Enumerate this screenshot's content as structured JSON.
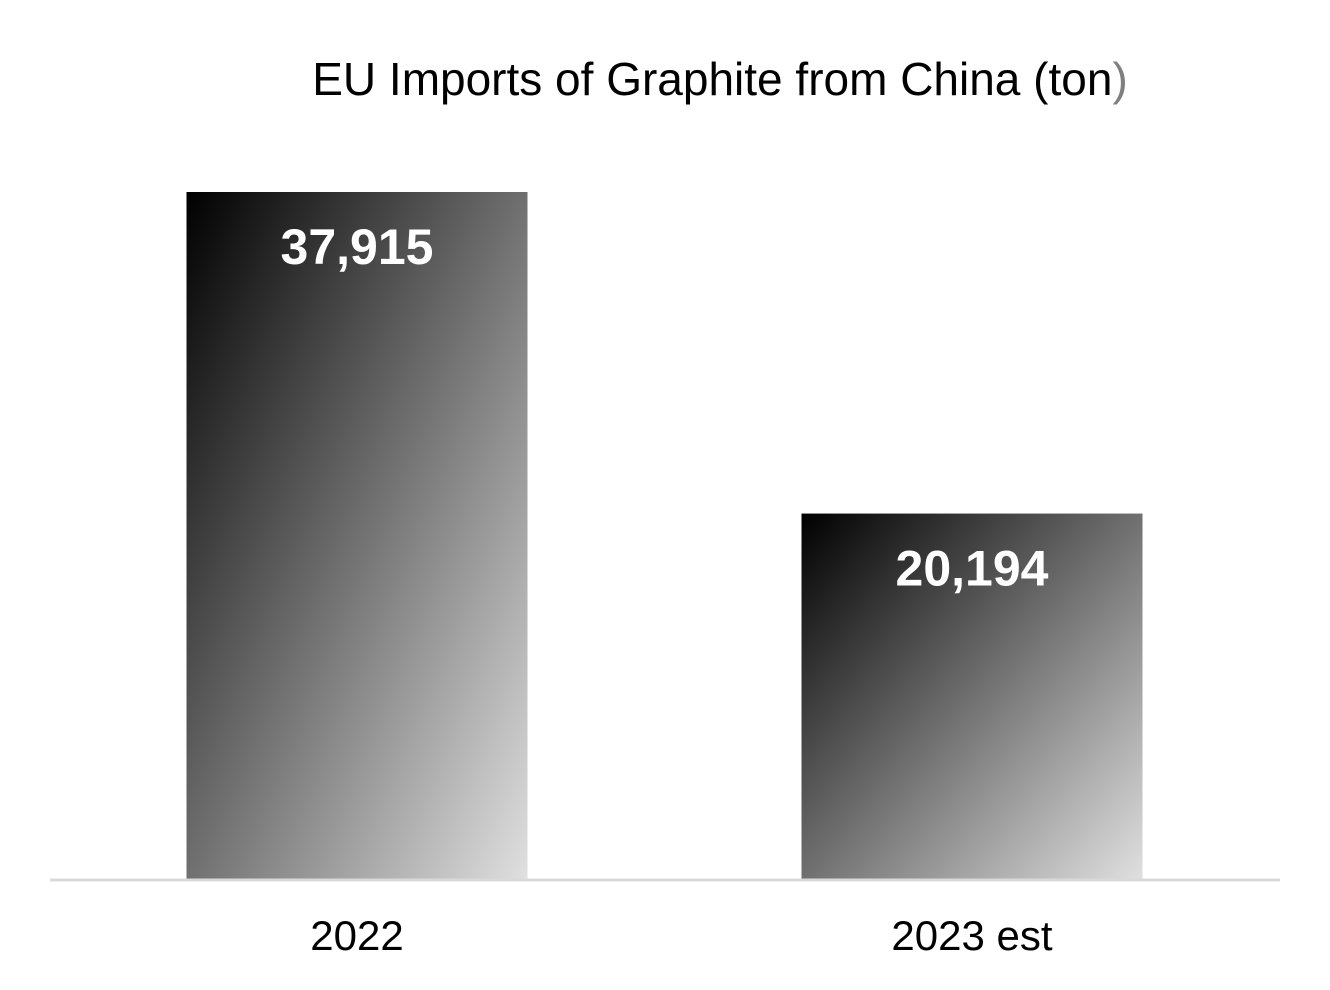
{
  "chart_data": {
    "type": "bar",
    "title": "EU Imports of Graphite from China (ton",
    "title_close": ")",
    "categories": [
      "2022",
      "2023 est"
    ],
    "values": [
      37915,
      20194
    ],
    "data_labels": [
      "37,915",
      "20,194"
    ],
    "xlabel": "",
    "ylabel": "",
    "ylim": [
      0,
      37915
    ],
    "grid": false,
    "legend": "none",
    "colors": {
      "bar_gradient_start": "#000000",
      "bar_gradient_end": "#e0e0e0",
      "axis_line": "#d9d9d9",
      "title_paren": "#7f7f7f"
    }
  }
}
